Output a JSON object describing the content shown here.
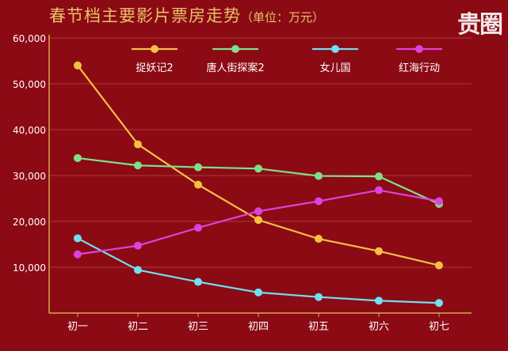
{
  "title": "春节档主要影片票房走势",
  "unit": "（单位：万元）",
  "logo_text": "贵圈",
  "colors": {
    "background": "#8b0a14",
    "axis": "#d4a94c",
    "grid": "#b23b2d",
    "tick_text": "#ffffff"
  },
  "chart_data": {
    "type": "line",
    "categories": [
      "初一",
      "初二",
      "初三",
      "初四",
      "初五",
      "初六",
      "初七"
    ],
    "ylim": [
      0,
      60000
    ],
    "yticks": [
      10000,
      20000,
      30000,
      40000,
      50000,
      60000
    ],
    "ytick_labels": [
      "10,000",
      "20,000",
      "30,000",
      "40,000",
      "50,000",
      "60,000"
    ],
    "grid": true,
    "legend_position": "top",
    "series": [
      {
        "name": "捉妖记2",
        "color": "#f4c042",
        "values": [
          54000,
          36800,
          28000,
          20300,
          16200,
          13500,
          10400
        ]
      },
      {
        "name": "唐人街探案2",
        "color": "#7ee08a",
        "values": [
          33800,
          32200,
          31800,
          31500,
          29900,
          29800,
          23800
        ]
      },
      {
        "name": "女儿国",
        "color": "#6fe0f0",
        "values": [
          16300,
          9400,
          6800,
          4500,
          3500,
          2700,
          2200
        ]
      },
      {
        "name": "红海行动",
        "color": "#e040e0",
        "values": [
          12800,
          14700,
          18600,
          22200,
          24400,
          26800,
          24400
        ]
      }
    ]
  }
}
